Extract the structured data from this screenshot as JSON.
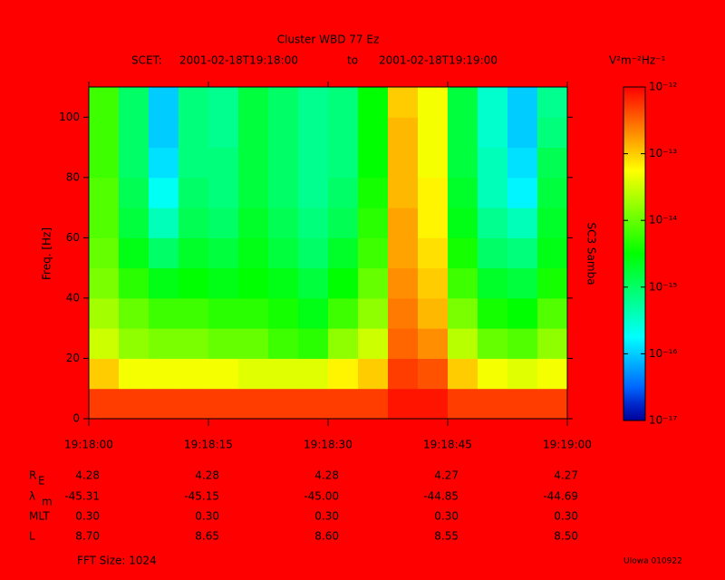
{
  "chart_data": {
    "type": "heatmap",
    "title": "Cluster WBD 77 Ez",
    "scet": [
      "SCET:",
      "2001-02-18T19:18:00",
      "to",
      "2001-02-18T19:19:00"
    ],
    "ylabel": "Freq. [Hz]",
    "colorbar_units": "V²m⁻²Hz⁻¹",
    "colorbar_label": "SC3 Samba",
    "xlim": [
      0,
      60
    ],
    "xticks": [
      {
        "value": 0,
        "label": "19:18:00"
      },
      {
        "value": 15,
        "label": "19:18:15"
      },
      {
        "value": 30,
        "label": "19:18:30"
      },
      {
        "value": 45,
        "label": "19:18:45"
      },
      {
        "value": 60,
        "label": "19:19:00"
      }
    ],
    "ylim": [
      0,
      110
    ],
    "yticks": [
      0,
      20,
      40,
      60,
      80,
      100
    ],
    "clim": [
      -17,
      -12
    ],
    "cticks": [
      {
        "value": -12,
        "label": "10⁻¹²"
      },
      {
        "value": -13,
        "label": "10⁻¹³"
      },
      {
        "value": -14,
        "label": "10⁻¹⁴"
      },
      {
        "value": -15,
        "label": "10⁻¹⁵"
      },
      {
        "value": -16,
        "label": "10⁻¹⁶"
      },
      {
        "value": -17,
        "label": "10⁻¹⁷"
      }
    ],
    "xbins": [
      0,
      3.75,
      7.5,
      11.25,
      15,
      18.75,
      22.5,
      26.25,
      30,
      33.75,
      37.5,
      41.25,
      45,
      48.75,
      52.5,
      56.25,
      60
    ],
    "ybins": [
      0,
      10,
      20,
      30,
      40,
      50,
      60,
      70,
      80,
      90,
      100,
      110
    ],
    "z": [
      [
        -12.3,
        -12.3,
        -12.3,
        -12.3,
        -12.3,
        -12.3,
        -12.3,
        -12.3,
        -12.3,
        -12.3,
        -12.1,
        -12.1,
        -12.3,
        -12.3,
        -12.3,
        -12.3
      ],
      [
        -13.0,
        -13.3,
        -13.3,
        -13.3,
        -13.3,
        -13.4,
        -13.4,
        -13.4,
        -13.2,
        -13.0,
        -12.3,
        -12.4,
        -13.0,
        -13.3,
        -13.4,
        -13.3
      ],
      [
        -13.5,
        -13.8,
        -13.9,
        -13.9,
        -14.0,
        -14.0,
        -14.2,
        -14.3,
        -13.8,
        -13.5,
        -12.5,
        -12.7,
        -13.6,
        -14.0,
        -14.1,
        -13.8
      ],
      [
        -13.7,
        -14.0,
        -14.2,
        -14.2,
        -14.3,
        -14.3,
        -14.4,
        -14.6,
        -14.2,
        -13.8,
        -12.6,
        -12.9,
        -13.9,
        -14.4,
        -14.5,
        -14.1
      ],
      [
        -13.9,
        -14.3,
        -14.6,
        -14.5,
        -14.6,
        -14.5,
        -14.6,
        -14.8,
        -14.5,
        -14.0,
        -12.7,
        -13.0,
        -14.2,
        -14.7,
        -14.8,
        -14.4
      ],
      [
        -14.0,
        -14.6,
        -15.0,
        -14.7,
        -14.8,
        -14.6,
        -14.8,
        -15.0,
        -14.7,
        -14.2,
        -12.8,
        -13.1,
        -14.4,
        -15.0,
        -15.1,
        -14.6
      ],
      [
        -14.1,
        -14.8,
        -15.4,
        -14.9,
        -15.0,
        -14.7,
        -14.9,
        -15.1,
        -14.9,
        -14.3,
        -12.8,
        -13.2,
        -14.6,
        -15.2,
        -15.4,
        -14.7
      ],
      [
        -14.1,
        -14.9,
        -15.7,
        -15.0,
        -15.1,
        -14.8,
        -15.0,
        -15.2,
        -15.0,
        -14.4,
        -12.9,
        -13.2,
        -14.7,
        -15.4,
        -15.8,
        -14.8
      ],
      [
        -14.2,
        -15.0,
        -15.9,
        -15.1,
        -15.1,
        -14.8,
        -15.0,
        -15.2,
        -15.1,
        -14.5,
        -12.9,
        -13.3,
        -14.8,
        -15.4,
        -15.9,
        -14.9
      ],
      [
        -14.2,
        -15.0,
        -16.0,
        -15.1,
        -15.2,
        -14.8,
        -15.0,
        -15.2,
        -15.1,
        -14.5,
        -12.9,
        -13.3,
        -14.8,
        -15.5,
        -16.0,
        -15.1
      ],
      [
        -14.2,
        -15.0,
        -16.0,
        -15.1,
        -15.2,
        -14.8,
        -15.0,
        -15.2,
        -15.1,
        -14.5,
        -13.0,
        -13.3,
        -14.8,
        -15.5,
        -16.0,
        -15.2
      ]
    ]
  },
  "ephemeris": {
    "rows": [
      {
        "label": "R",
        "sub": "E",
        "values": [
          "4.28",
          "4.28",
          "4.28",
          "4.27",
          "4.27"
        ]
      },
      {
        "label": "λ",
        "sub": "m",
        "values": [
          "-45.31",
          "-45.15",
          "-45.00",
          "-44.85",
          "-44.69"
        ]
      },
      {
        "label": "MLT",
        "values": [
          "0.30",
          "0.30",
          "0.30",
          "0.30",
          "0.30"
        ]
      },
      {
        "label": "L",
        "values": [
          "8.70",
          "8.65",
          "8.60",
          "8.55",
          "8.50"
        ]
      }
    ]
  },
  "footer": {
    "fft": "FFT Size: 1024",
    "credit": "UIowa 010922"
  }
}
